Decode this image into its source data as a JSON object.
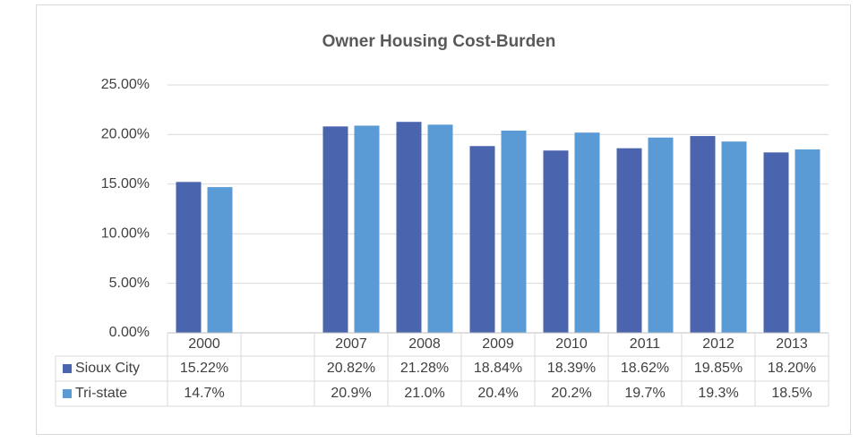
{
  "chart_data": {
    "type": "bar",
    "title": "Owner Housing Cost-Burden",
    "categories": [
      "2000",
      null,
      "2007",
      "2008",
      "2009",
      "2010",
      "2011",
      "2012",
      "2013"
    ],
    "series": [
      {
        "name": "Sioux City",
        "color": "#4a64ae",
        "values": [
          15.22,
          null,
          20.82,
          21.28,
          18.84,
          18.39,
          18.62,
          19.85,
          18.2
        ],
        "value_labels": [
          "15.22%",
          null,
          "20.82%",
          "21.28%",
          "18.84%",
          "18.39%",
          "18.62%",
          "19.85%",
          "18.20%"
        ]
      },
      {
        "name": "Tri-state",
        "color": "#5b9bd5",
        "values": [
          14.7,
          null,
          20.9,
          21.0,
          20.4,
          20.2,
          19.7,
          19.3,
          18.5
        ],
        "value_labels": [
          "14.7%",
          null,
          "20.9%",
          "21.0%",
          "20.4%",
          "20.2%",
          "19.7%",
          "19.3%",
          "18.5%"
        ]
      }
    ],
    "ylim": [
      0,
      25
    ],
    "yticks": [
      {
        "value": 0,
        "label": "0.00%"
      },
      {
        "value": 5,
        "label": "5.00%"
      },
      {
        "value": 10,
        "label": "10.00%"
      },
      {
        "value": 15,
        "label": "15.00%"
      },
      {
        "value": 20,
        "label": "20.00%"
      },
      {
        "value": 25,
        "label": "25.00%"
      }
    ],
    "grid": true
  }
}
